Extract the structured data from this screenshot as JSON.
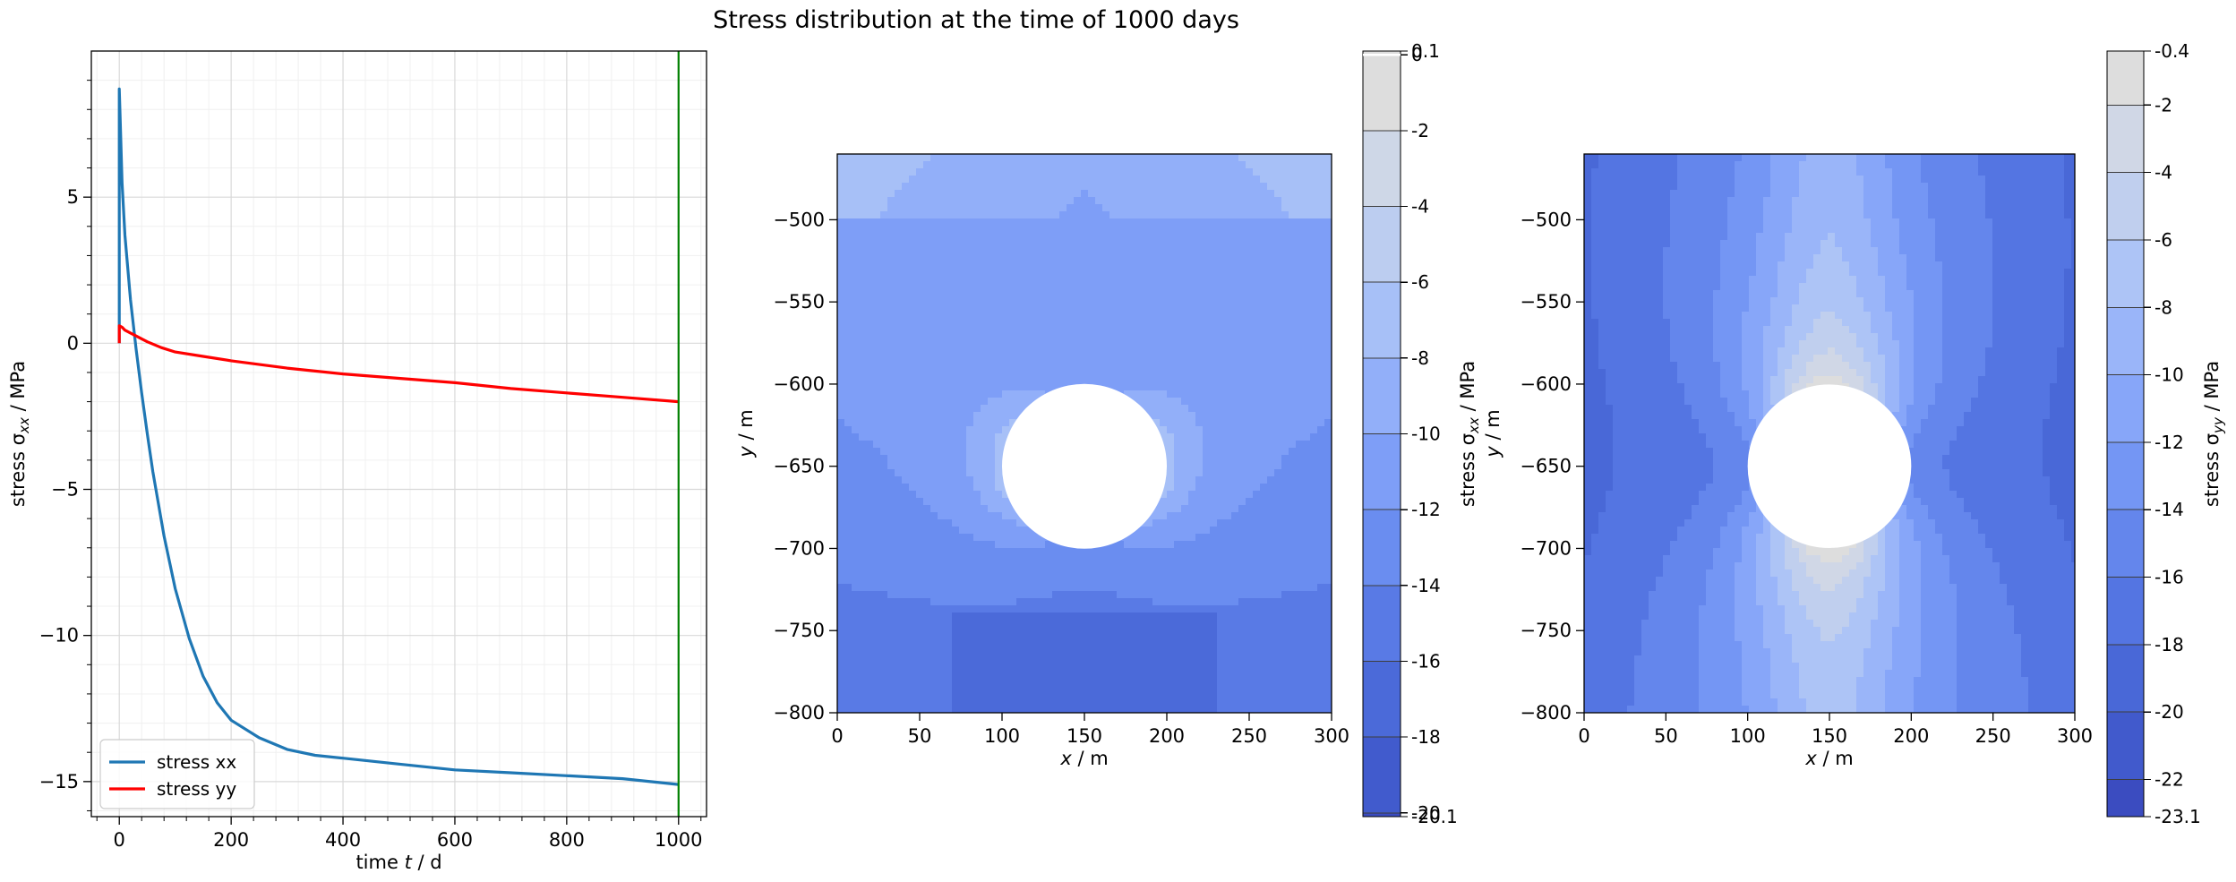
{
  "title": "Stress distribution at the time of 1000 days",
  "colors": {
    "stress_xx": "#1f77b4",
    "stress_yy": "#ff0000",
    "time_marker": "#008000",
    "grid_major": "#d9d9d9",
    "grid_minor": "#f0f0f0"
  },
  "chart_data": [
    {
      "type": "line",
      "xlabel": "time t / d",
      "ylabel": "stress σxx / MPa",
      "xlim": [
        -50,
        1050
      ],
      "ylim": [
        -16.2,
        10
      ],
      "xticks": [
        0,
        200,
        400,
        600,
        800,
        1000
      ],
      "yticks": [
        5,
        0,
        -5,
        -10,
        -15
      ],
      "grid": true,
      "legend_position": "lower-left",
      "vline_x": 1000,
      "series": [
        {
          "name": "stress xx",
          "color": "#1f77b4",
          "x": [
            0,
            0,
            1,
            5,
            10,
            20,
            30,
            40,
            50,
            60,
            80,
            100,
            125,
            150,
            175,
            200,
            250,
            300,
            350,
            400,
            500,
            600,
            700,
            800,
            900,
            1000
          ],
          "y": [
            0,
            8.7,
            8.0,
            5.5,
            3.7,
            1.5,
            -0.2,
            -1.7,
            -3.1,
            -4.4,
            -6.6,
            -8.4,
            -10.1,
            -11.4,
            -12.3,
            -12.9,
            -13.5,
            -13.9,
            -14.1,
            -14.2,
            -14.4,
            -14.6,
            -14.7,
            -14.8,
            -14.9,
            -15.1
          ]
        },
        {
          "name": "stress yy",
          "color": "#ff0000",
          "x": [
            0,
            0,
            5,
            10,
            20,
            30,
            40,
            50,
            75,
            100,
            150,
            200,
            300,
            400,
            500,
            600,
            700,
            800,
            900,
            1000
          ],
          "y": [
            0,
            0.6,
            0.55,
            0.45,
            0.35,
            0.25,
            0.15,
            0.05,
            -0.15,
            -0.3,
            -0.45,
            -0.6,
            -0.85,
            -1.05,
            -1.2,
            -1.35,
            -1.55,
            -1.7,
            -1.85,
            -2.0
          ]
        }
      ]
    },
    {
      "type": "heatmap",
      "xlabel": "x / m",
      "ylabel": "y / m",
      "xlim": [
        0,
        300
      ],
      "ylim": [
        -800,
        -460
      ],
      "xticks": [
        0,
        50,
        100,
        150,
        200,
        250,
        300
      ],
      "yticks": [
        -500,
        -550,
        -600,
        -650,
        -700,
        -750,
        -800
      ],
      "hole": {
        "center_x": 150,
        "center_y": -650,
        "radius": 50
      },
      "colorbar": {
        "label": "stress σxx / MPa",
        "tick_labels": [
          "0.1",
          "0",
          "-2",
          "-4",
          "-6",
          "-8",
          "-10",
          "-12",
          "-14",
          "-16",
          "-18",
          "-20",
          "-20.1"
        ],
        "tick_values": [
          0.1,
          0,
          -2,
          -4,
          -6,
          -8,
          -10,
          -12,
          -14,
          -16,
          -18,
          -20,
          -20.1
        ],
        "levels": [
          0.1,
          -2,
          -4,
          -6,
          -8,
          -10,
          -12,
          -14,
          -16,
          -18,
          -20,
          -20.1
        ]
      }
    },
    {
      "type": "heatmap",
      "xlabel": "x / m",
      "ylabel": "y / m",
      "xlim": [
        0,
        300
      ],
      "ylim": [
        -800,
        -460
      ],
      "xticks": [
        0,
        50,
        100,
        150,
        200,
        250,
        300
      ],
      "yticks": [
        -500,
        -550,
        -600,
        -650,
        -700,
        -750,
        -800
      ],
      "hole": {
        "center_x": 150,
        "center_y": -650,
        "radius": 50
      },
      "colorbar": {
        "label": "stress σyy / MPa",
        "tick_labels": [
          "-0.4",
          "-2",
          "-4",
          "-6",
          "-8",
          "-10",
          "-12",
          "-14",
          "-16",
          "-18",
          "-20",
          "-22",
          "-23.1"
        ],
        "tick_values": [
          -0.4,
          -2,
          -4,
          -6,
          -8,
          -10,
          -12,
          -14,
          -16,
          -18,
          -20,
          -22,
          -23.1
        ],
        "levels": [
          -0.4,
          -2,
          -4,
          -6,
          -8,
          -10,
          -12,
          -14,
          -16,
          -18,
          -20,
          -22,
          -23.1
        ]
      }
    }
  ]
}
